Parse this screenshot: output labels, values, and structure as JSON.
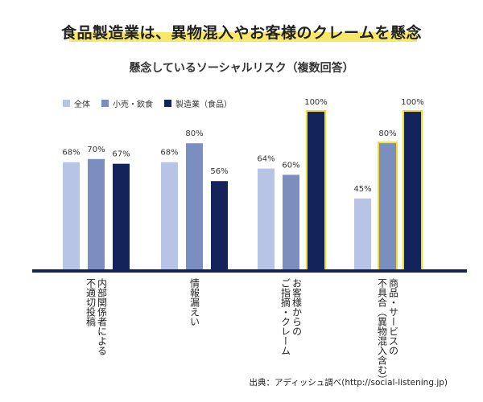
{
  "title": "食品製造業は、異物混入やお客様のクレームを懸念",
  "subtitle": "懸念しているソーシャルリスク（複数回答）",
  "source": "出典：アディッシュ調べ(http://social-listening.jp)",
  "colors": {
    "series": [
      "#b7c4e6",
      "#7b8ebf",
      "#14235a"
    ],
    "highlight": "#f2de1e",
    "axis": "#14235a"
  },
  "chart_data": {
    "type": "bar",
    "categories": [
      [
        "内部関係者による",
        "不適切投稿"
      ],
      [
        "情報漏えい"
      ],
      [
        "お客様からの",
        "ご指摘・クレーム"
      ],
      [
        "商品・サービスの",
        "不具合（異物混入含む）"
      ]
    ],
    "series": [
      {
        "name": "全体",
        "values": [
          68,
          68,
          64,
          45
        ]
      },
      {
        "name": "小売・飲食",
        "values": [
          70,
          80,
          60,
          80
        ]
      },
      {
        "name": "製造業（食品）",
        "values": [
          67,
          56,
          100,
          100
        ]
      }
    ],
    "value_suffix": "%",
    "ylim": [
      0,
      100
    ],
    "grid": false,
    "legend": "top-left",
    "highlighted": [
      [
        2,
        2
      ],
      [
        3,
        1
      ],
      [
        3,
        2
      ]
    ]
  }
}
